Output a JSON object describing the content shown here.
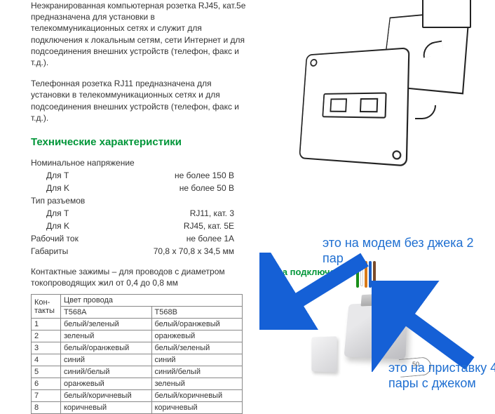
{
  "intro": {
    "para1": "Неэкранированная компьютерная розетка RJ45, кат.5е предназначена для установки в телекоммуникационных сетях и служит для подключения к локальным сетям, сети Интернет и для подсоединения внешних устройств (телефон, факс и т.д.).",
    "para2": "Телефонная розетка RJ11 предназначена для установки в телекоммуникационных сетях и для подсоединения внешних устройств (телефон, факс и т.д.)."
  },
  "spec_heading": "Технические характеристики",
  "specs": {
    "voltage_label": "Номинальное напряжение",
    "voltage_t_label": "Для T",
    "voltage_t_value": "не более 150 В",
    "voltage_k_label": "Для K",
    "voltage_k_value": "не более 50 В",
    "connector_label": "Тип разъемов",
    "connector_t_label": "Для T",
    "connector_t_value": "RJ11, кат. 3",
    "connector_k_label": "Для K",
    "connector_k_value": "RJ45, кат. 5Е",
    "current_label": "Рабочий ток",
    "current_value": "не более 1А",
    "dims_label": "Габариты",
    "dims_value": "70,8 x 70,8 x 34,5 мм"
  },
  "clamp_note": "Контактные зажимы – для проводов с диаметром токопроводящих жил от 0,4 до 0,8 мм",
  "wire_table": {
    "col_contacts": "Кон-такты",
    "col_color_span": "Цвет провода",
    "col_a": "T568A",
    "col_b": "T568B",
    "rows": [
      {
        "n": "1",
        "a": "белый/зеленый",
        "b": "белый/оранжевый"
      },
      {
        "n": "2",
        "a": "зеленый",
        "b": "оранжевый"
      },
      {
        "n": "3",
        "a": "белый/оранжевый",
        "b": "белый/зеленый"
      },
      {
        "n": "4",
        "a": "синий",
        "b": "синий"
      },
      {
        "n": "5",
        "a": "синий/белый",
        "b": "синий/белый"
      },
      {
        "n": "6",
        "a": "оранжевый",
        "b": "зеленый"
      },
      {
        "n": "7",
        "a": "белый/коричневый",
        "b": "белый/коричневый"
      },
      {
        "n": "8",
        "a": "коричневый",
        "b": "коричневый"
      }
    ]
  },
  "schema_title": "Схема подключения",
  "annotations": {
    "top": "это на модем без джека 2 пар",
    "bottom": "это на приставку 4 пары с джеком"
  },
  "colors": {
    "green": "#009639",
    "blue_annot": "#1f6fd1",
    "arrow_blue": "#1560d6",
    "text": "#333333"
  }
}
